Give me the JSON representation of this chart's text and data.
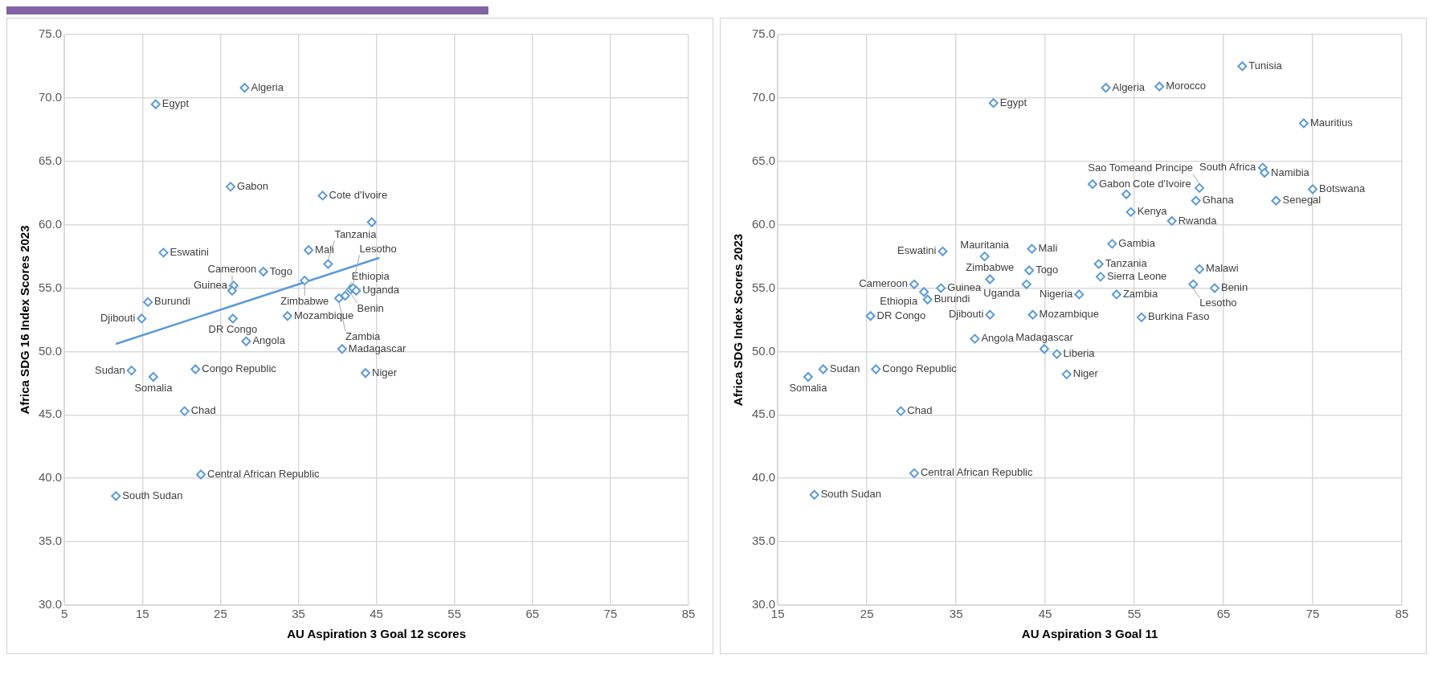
{
  "chart_data": [
    {
      "type": "scatter",
      "xlabel": "AU Aspiration 3 Goal 12 scores",
      "ylabel": "Africa SDG 16 Index Scores 2023",
      "xlim": [
        5,
        85
      ],
      "xticks": [
        5,
        15,
        25,
        35,
        45,
        55,
        65,
        75,
        85
      ],
      "ylim": [
        30,
        75
      ],
      "yticks": [
        {
          "value": 30,
          "label": "30.0"
        },
        {
          "value": 35,
          "label": "35.0"
        },
        {
          "value": 40,
          "label": "40.0"
        },
        {
          "value": 45,
          "label": "45.0"
        },
        {
          "value": 50,
          "label": "50.0"
        },
        {
          "value": 55,
          "label": "55.0"
        },
        {
          "value": 60,
          "label": "60.0"
        },
        {
          "value": 65,
          "label": "65.0"
        },
        {
          "value": 70,
          "label": "70.0"
        },
        {
          "value": 75,
          "label": "75.0"
        }
      ],
      "grid": true,
      "marker": "diamond",
      "series": [
        {
          "color": "#5b9bd5",
          "x": [
            16.7,
            28.1,
            26.3,
            38.1,
            44.4,
            17.7,
            30.5,
            26.7,
            26.5,
            36.3,
            38.8,
            35.8,
            15.7,
            14.9,
            26.6,
            33.6,
            28.3,
            13.6,
            16.4,
            21.8,
            20.4,
            22.5,
            11.6,
            40.6,
            43.6,
            40.2,
            41.0,
            41.7,
            42.0,
            42.4
          ],
          "values": [
            69.5,
            70.8,
            63.0,
            62.3,
            60.2,
            57.8,
            56.3,
            55.2,
            54.8,
            58.0,
            56.9,
            55.6,
            53.9,
            52.6,
            52.6,
            52.8,
            50.8,
            48.5,
            48.0,
            48.6,
            45.3,
            40.3,
            38.6,
            50.2,
            48.3,
            54.2,
            54.4,
            54.9,
            55.0,
            54.8
          ]
        },
        {
          "type": "line",
          "color": "#5b9bd5",
          "marker": "none",
          "x": [
            11.6,
            45.4
          ],
          "values": [
            50.6,
            57.4
          ]
        }
      ],
      "annotations": [
        {
          "text": "Egypt",
          "x": 16.7,
          "y": 69.5
        },
        {
          "text": "Algeria",
          "x": 28.1,
          "y": 70.8
        },
        {
          "text": "Gabon",
          "x": 26.3,
          "y": 63.0
        },
        {
          "text": "Cote d'Ivoire",
          "x": 38.1,
          "y": 62.3
        },
        {
          "text": "Eswatini",
          "x": 17.7,
          "y": 57.8
        },
        {
          "text": "Togo",
          "x": 30.5,
          "y": 56.3
        },
        {
          "text": "Guinea",
          "x": 26.7,
          "y": 55.2
        },
        {
          "text": "Cameroon",
          "x": 26.5,
          "y": 54.8
        },
        {
          "text": "Mali",
          "x": 36.3,
          "y": 58.0
        },
        {
          "text": "Tanzania",
          "x": 38.8,
          "y": 56.9
        },
        {
          "text": "Zimbabwe",
          "x": 35.8,
          "y": 55.6
        },
        {
          "text": "Burundi",
          "x": 15.7,
          "y": 53.9
        },
        {
          "text": "Djibouti",
          "x": 14.9,
          "y": 52.6
        },
        {
          "text": "DR Congo",
          "x": 26.6,
          "y": 52.6
        },
        {
          "text": "Mozambique",
          "x": 33.6,
          "y": 52.8
        },
        {
          "text": "Angola",
          "x": 28.3,
          "y": 50.8
        },
        {
          "text": "Sudan",
          "x": 13.6,
          "y": 48.5
        },
        {
          "text": "Somalia",
          "x": 16.4,
          "y": 48.0
        },
        {
          "text": "Congo Republic",
          "x": 21.8,
          "y": 48.6
        },
        {
          "text": "Chad",
          "x": 20.4,
          "y": 45.3
        },
        {
          "text": "Central African Republic",
          "x": 22.5,
          "y": 40.3
        },
        {
          "text": "South Sudan",
          "x": 11.6,
          "y": 38.6
        },
        {
          "text": "Madagascar",
          "x": 40.6,
          "y": 50.2
        },
        {
          "text": "Niger",
          "x": 43.6,
          "y": 48.3
        },
        {
          "text": "Zambia",
          "x": 40.2,
          "y": 54.2
        },
        {
          "text": "Ethiopia",
          "x": 41.0,
          "y": 54.4
        },
        {
          "text": "Benin",
          "x": 41.7,
          "y": 54.9
        },
        {
          "text": "Lesotho",
          "x": 42.0,
          "y": 55.0
        },
        {
          "text": "Uganda",
          "x": 42.4,
          "y": 54.8
        }
      ]
    },
    {
      "type": "scatter",
      "xlabel": "AU Aspiration 3 Goal 11",
      "ylabel": "Africa SDG Index Scores 2023",
      "xlim": [
        15,
        85
      ],
      "xticks": [
        15,
        25,
        35,
        45,
        55,
        65,
        75,
        85
      ],
      "ylim": [
        30,
        75
      ],
      "yticks": [
        {
          "value": 30,
          "label": "30.0"
        },
        {
          "value": 35,
          "label": "35.0"
        },
        {
          "value": 40,
          "label": "40.0"
        },
        {
          "value": 45,
          "label": "45.0"
        },
        {
          "value": 50,
          "label": "50.0"
        },
        {
          "value": 55,
          "label": "55.0"
        },
        {
          "value": 60,
          "label": "60.0"
        },
        {
          "value": 65,
          "label": "65.0"
        },
        {
          "value": 70,
          "label": "70.0"
        },
        {
          "value": 75,
          "label": "75.0"
        }
      ],
      "grid": true,
      "marker": "diamond",
      "series": [
        {
          "color": "#5b9bd5",
          "x": [
            39.2,
            51.8,
            57.8,
            67.1,
            74.0,
            69.4,
            69.6,
            75.0,
            70.9,
            50.3,
            54.1,
            62.3,
            61.9,
            54.6,
            59.2,
            52.5,
            51.0,
            51.2,
            48.8,
            53.0,
            62.3,
            61.6,
            64.0,
            55.8,
            43.6,
            38.8,
            37.1,
            33.5,
            38.2,
            43.5,
            43.2,
            42.9,
            38.8,
            30.3,
            31.4,
            31.8,
            33.3,
            25.4,
            44.9,
            46.3,
            47.4,
            20.1,
            18.4,
            26.0,
            28.8,
            30.3,
            19.1
          ],
          "values": [
            69.6,
            70.8,
            70.9,
            72.5,
            68.0,
            64.5,
            64.1,
            62.8,
            61.9,
            63.2,
            62.4,
            62.9,
            61.9,
            61.0,
            60.3,
            58.5,
            56.9,
            55.9,
            54.5,
            54.5,
            56.5,
            55.3,
            55.0,
            52.7,
            52.9,
            52.9,
            51.0,
            57.9,
            57.5,
            58.1,
            56.4,
            55.3,
            55.7,
            55.3,
            54.7,
            54.1,
            55.0,
            52.8,
            50.2,
            49.8,
            48.2,
            48.6,
            48.0,
            48.6,
            45.3,
            40.4,
            38.7
          ]
        }
      ],
      "annotations": [
        {
          "text": "Egypt",
          "x": 39.2,
          "y": 69.6
        },
        {
          "text": "Algeria",
          "x": 51.8,
          "y": 70.8
        },
        {
          "text": "Morocco",
          "x": 57.8,
          "y": 70.9
        },
        {
          "text": "Tunisia",
          "x": 67.1,
          "y": 72.5
        },
        {
          "text": "Mauritius",
          "x": 74.0,
          "y": 68.0
        },
        {
          "text": "South Africa",
          "x": 69.4,
          "y": 64.5
        },
        {
          "text": "Namibia",
          "x": 69.6,
          "y": 64.1
        },
        {
          "text": "Botswana",
          "x": 75.0,
          "y": 62.8
        },
        {
          "text": "Senegal",
          "x": 70.9,
          "y": 61.9
        },
        {
          "text": "Gabon",
          "x": 50.3,
          "y": 63.2
        },
        {
          "text": "Cote d'Ivoire",
          "x": 54.1,
          "y": 62.4
        },
        {
          "text": "Sao Tomeand Principe",
          "x": 62.3,
          "y": 62.9
        },
        {
          "text": "Ghana",
          "x": 61.9,
          "y": 61.9
        },
        {
          "text": "Kenya",
          "x": 54.6,
          "y": 61.0
        },
        {
          "text": "Rwanda",
          "x": 59.2,
          "y": 60.3
        },
        {
          "text": "Gambia",
          "x": 52.5,
          "y": 58.5
        },
        {
          "text": "Tanzania",
          "x": 51.0,
          "y": 56.9
        },
        {
          "text": "Sierra Leone",
          "x": 51.2,
          "y": 55.9
        },
        {
          "text": "Nigeria",
          "x": 48.8,
          "y": 54.5
        },
        {
          "text": "Zambia",
          "x": 53.0,
          "y": 54.5
        },
        {
          "text": "Malawi",
          "x": 62.3,
          "y": 56.5
        },
        {
          "text": "Lesotho",
          "x": 61.6,
          "y": 55.3
        },
        {
          "text": "Benin",
          "x": 64.0,
          "y": 55.0
        },
        {
          "text": "Burkina Faso",
          "x": 55.8,
          "y": 52.7
        },
        {
          "text": "Mozambique",
          "x": 43.6,
          "y": 52.9
        },
        {
          "text": "Djibouti",
          "x": 38.8,
          "y": 52.9
        },
        {
          "text": "Angola",
          "x": 37.1,
          "y": 51.0
        },
        {
          "text": "Eswatini",
          "x": 33.5,
          "y": 57.9
        },
        {
          "text": "Mauritania",
          "x": 38.2,
          "y": 57.5
        },
        {
          "text": "Mali",
          "x": 43.5,
          "y": 58.1
        },
        {
          "text": "Togo",
          "x": 43.2,
          "y": 56.4
        },
        {
          "text": "Uganda",
          "x": 42.9,
          "y": 55.3
        },
        {
          "text": "Zimbabwe",
          "x": 38.8,
          "y": 55.7
        },
        {
          "text": "Cameroon",
          "x": 30.3,
          "y": 55.3
        },
        {
          "text": "Ethiopia",
          "x": 31.4,
          "y": 54.7
        },
        {
          "text": "Burundi",
          "x": 31.8,
          "y": 54.1
        },
        {
          "text": "Guinea",
          "x": 33.3,
          "y": 55.0
        },
        {
          "text": "DR Congo",
          "x": 25.4,
          "y": 52.8
        },
        {
          "text": "Madagascar",
          "x": 44.9,
          "y": 50.2
        },
        {
          "text": "Liberia",
          "x": 46.3,
          "y": 49.8
        },
        {
          "text": "Niger",
          "x": 47.4,
          "y": 48.2
        },
        {
          "text": "Sudan",
          "x": 20.1,
          "y": 48.6
        },
        {
          "text": "Somalia",
          "x": 18.4,
          "y": 48.0
        },
        {
          "text": "Congo Republic",
          "x": 26.0,
          "y": 48.6
        },
        {
          "text": "Chad",
          "x": 28.8,
          "y": 45.3
        },
        {
          "text": "Central African Republic",
          "x": 30.3,
          "y": 40.4
        },
        {
          "text": "South Sudan",
          "x": 19.1,
          "y": 38.7
        }
      ]
    }
  ]
}
